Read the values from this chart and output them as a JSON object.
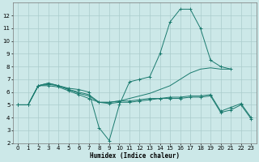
{
  "bg_color": "#cce8e8",
  "grid_color": "#aacccc",
  "line_color": "#1a7a6e",
  "xlabel": "Humidex (Indice chaleur)",
  "xlim": [
    -0.5,
    23.5
  ],
  "ylim": [
    2,
    13
  ],
  "xticks": [
    0,
    1,
    2,
    3,
    4,
    5,
    6,
    7,
    8,
    9,
    10,
    11,
    12,
    13,
    14,
    15,
    16,
    17,
    18,
    19,
    20,
    21,
    22,
    23
  ],
  "yticks": [
    2,
    3,
    4,
    5,
    6,
    7,
    8,
    9,
    10,
    11,
    12
  ],
  "series": [
    {
      "x": [
        0,
        1,
        2,
        3,
        4,
        5,
        6,
        7,
        8,
        9,
        10,
        11,
        12,
        13,
        14,
        15,
        16,
        17,
        18,
        19,
        20,
        21
      ],
      "y": [
        5,
        5,
        6.5,
        6.7,
        6.5,
        6.3,
        6.2,
        6.0,
        3.2,
        2.2,
        5.0,
        6.8,
        7.0,
        7.2,
        9.0,
        11.5,
        12.5,
        12.5,
        11.0,
        8.5,
        8.0,
        7.8
      ],
      "marker": true
    },
    {
      "x": [
        0,
        1,
        2,
        3,
        4,
        5,
        6,
        7,
        8,
        9,
        10,
        11,
        12,
        13,
        14,
        15,
        16,
        17,
        18,
        19,
        20,
        21
      ],
      "y": [
        5,
        5,
        6.5,
        6.7,
        6.5,
        6.2,
        6.0,
        5.8,
        5.2,
        5.2,
        5.3,
        5.5,
        5.7,
        5.9,
        6.2,
        6.5,
        7.0,
        7.5,
        7.8,
        7.9,
        7.8,
        7.8
      ],
      "marker": false
    },
    {
      "x": [
        0,
        1,
        2,
        3,
        4,
        5,
        6,
        7,
        8,
        9,
        10,
        11,
        12,
        13,
        14,
        15,
        16,
        17,
        18,
        19,
        20,
        21,
        22,
        23
      ],
      "y": [
        5,
        5,
        6.5,
        6.6,
        6.5,
        6.2,
        5.9,
        5.7,
        5.2,
        5.2,
        5.3,
        5.3,
        5.4,
        5.5,
        5.5,
        5.6,
        5.6,
        5.7,
        5.7,
        5.8,
        4.5,
        4.8,
        5.1,
        4.0
      ],
      "marker": true
    },
    {
      "x": [
        0,
        1,
        2,
        3,
        4,
        5,
        6,
        7,
        8,
        9,
        10,
        11,
        12,
        13,
        14,
        15,
        16,
        17,
        18,
        19,
        20,
        21,
        22,
        23
      ],
      "y": [
        5,
        5,
        6.5,
        6.5,
        6.4,
        6.1,
        5.8,
        5.5,
        5.2,
        5.1,
        5.2,
        5.2,
        5.3,
        5.4,
        5.5,
        5.5,
        5.5,
        5.6,
        5.6,
        5.7,
        4.4,
        4.6,
        5.0,
        3.9
      ],
      "marker": true
    }
  ]
}
